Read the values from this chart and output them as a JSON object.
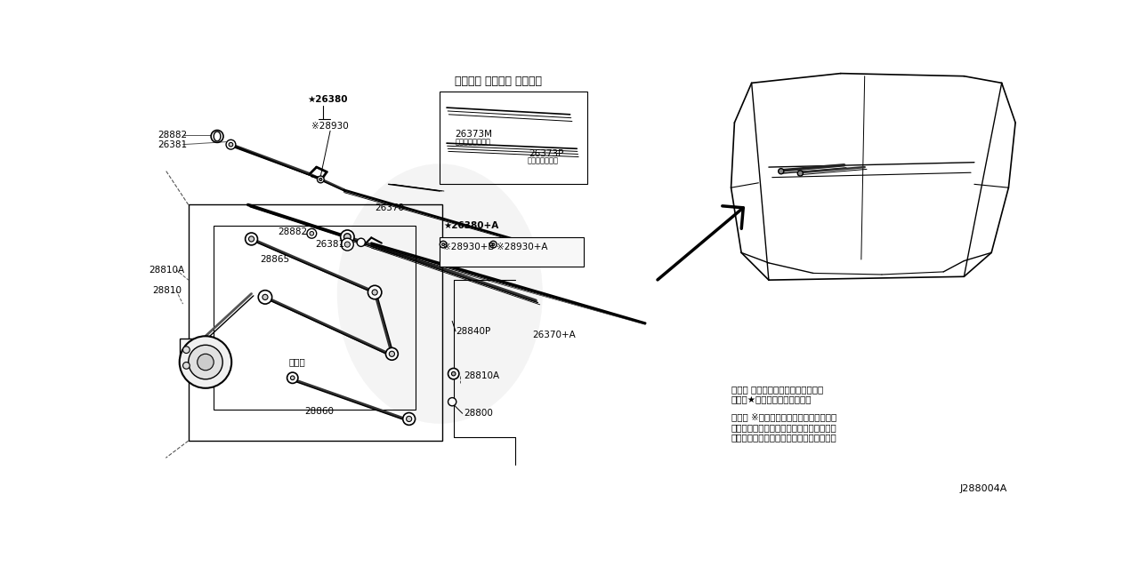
{
  "bg_color": "#ffffff",
  "line_color": "#000000",
  "title": "ワイパー ブレード リフィル",
  "diagram_id": "J288004A",
  "note1_line1": "注１） 表記以外の構成部品は非販売",
  "note1_line2": "　　　★印の構成部品は非販売",
  "note2_line1": "注２） ※印の部品は一度取り外した物は",
  "note2_line2": "　　　再利用できません。一度取り外した",
  "note2_line3": "　　　際は新しい部品を取得して下さい。",
  "font_size_label": 7.5,
  "font_size_title": 9,
  "font_size_note": 7.5,
  "font_size_id": 8
}
